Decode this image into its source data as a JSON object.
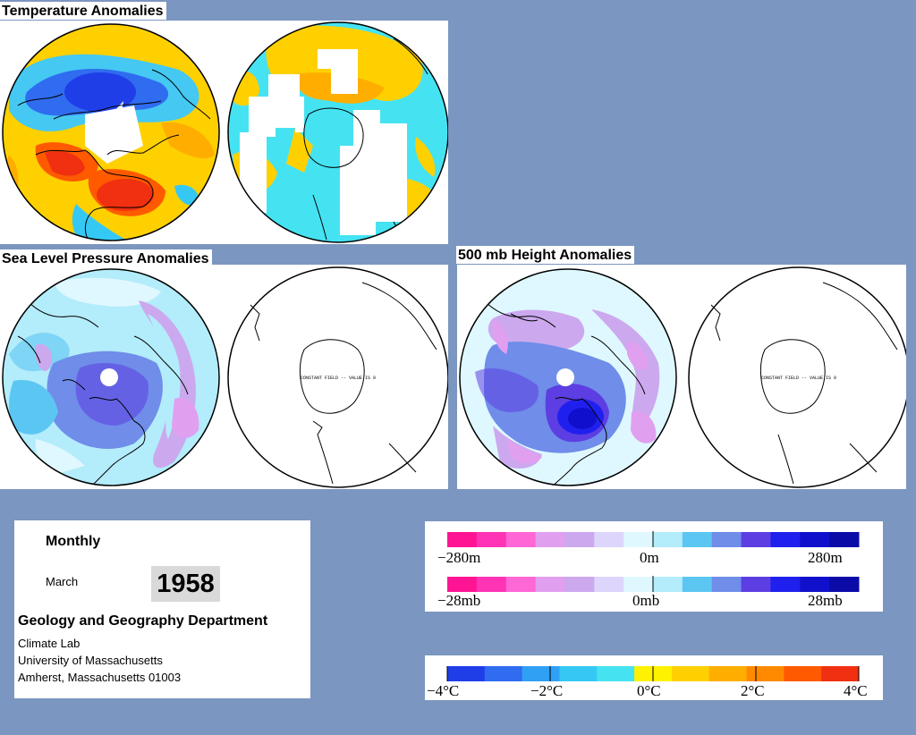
{
  "sections": {
    "temperature": "Temperature Anomalies",
    "slp": "Sea Level Pressure Anomalies",
    "h500": "500 mb Height Anomalies"
  },
  "map_annotation": "CONSTANT FIELD -- VALUE IS 0",
  "info": {
    "period": "Monthly",
    "month": "March",
    "year": "1958",
    "department": "Geology and Geography Department",
    "lab": "Climate Lab",
    "university": "University of Massachusetts",
    "address": "Amherst, Massachusetts 01003"
  },
  "legends": {
    "height": {
      "labels": [
        "−280m",
        "0m",
        "280m"
      ]
    },
    "pressure": {
      "labels": [
        "−28mb",
        "0mb",
        "28mb"
      ]
    },
    "temperature": {
      "labels": [
        "−4°C",
        "−2°C",
        "0°C",
        "2°C",
        "4°C"
      ]
    }
  },
  "colors": {
    "anomaly_scale": [
      "#ff1493",
      "#ff33b5",
      "#ff66d6",
      "#e19ff0",
      "#cca9ee",
      "#ddd5fb",
      "#dff8ff",
      "#b3ecfb",
      "#5cc6f2",
      "#6f8de9",
      "#5c3ee2",
      "#2020ee",
      "#1010cc",
      "#0b0ba8"
    ],
    "temperature_scale": [
      "#1f3ee8",
      "#2f6cf0",
      "#30a0f4",
      "#36c8f4",
      "#45e3f2",
      "#fff200",
      "#ffd000",
      "#ffae00",
      "#ff8a00",
      "#ff5a00",
      "#f03010"
    ],
    "background": "#7b96c0"
  }
}
